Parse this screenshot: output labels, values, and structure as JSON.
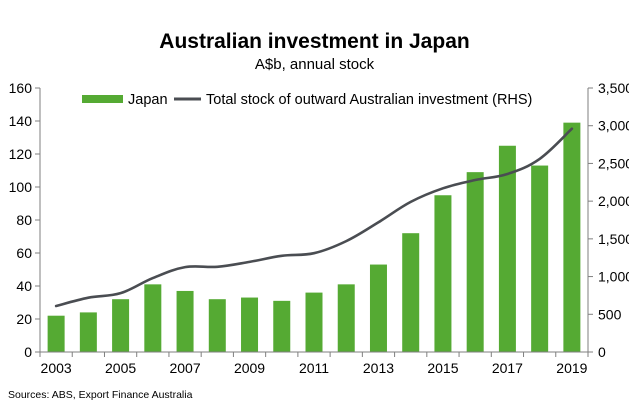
{
  "chart_data": {
    "type": "bar",
    "title": "Australian investment in Japan",
    "subtitle": "A$b, annual stock",
    "source": "Sources: ABS, Export Finance Australia",
    "x": [
      2003,
      2004,
      2005,
      2006,
      2007,
      2008,
      2009,
      2010,
      2011,
      2012,
      2013,
      2014,
      2015,
      2016,
      2017,
      2018,
      2019
    ],
    "x_tick_labels": [
      "2003",
      "2005",
      "2007",
      "2009",
      "2011",
      "2013",
      "2015",
      "2017",
      "2019"
    ],
    "y_left": {
      "lim": [
        0,
        160
      ],
      "ticks": [
        "0",
        "20",
        "40",
        "60",
        "80",
        "100",
        "120",
        "140",
        "160"
      ]
    },
    "y_right": {
      "lim": [
        0,
        3500
      ],
      "ticks": [
        "0",
        "500",
        "1,000",
        "1,500",
        "2,000",
        "2,500",
        "3,000",
        "3,500"
      ]
    },
    "series": [
      {
        "name": "Japan",
        "type": "bar",
        "axis": "left",
        "color": "#55aa33",
        "values": [
          22,
          24,
          32,
          41,
          37,
          32,
          33,
          31,
          36,
          41,
          53,
          72,
          95,
          109,
          125,
          113,
          139
        ]
      },
      {
        "name": "Total stock of outward Australian investment (RHS)",
        "type": "line",
        "axis": "right",
        "color": "#4a4d52",
        "values": [
          610,
          720,
          780,
          980,
          1125,
          1130,
          1195,
          1275,
          1310,
          1470,
          1720,
          1990,
          2170,
          2280,
          2360,
          2560,
          2960
        ]
      }
    ],
    "legend_position": "top",
    "grid": false
  }
}
